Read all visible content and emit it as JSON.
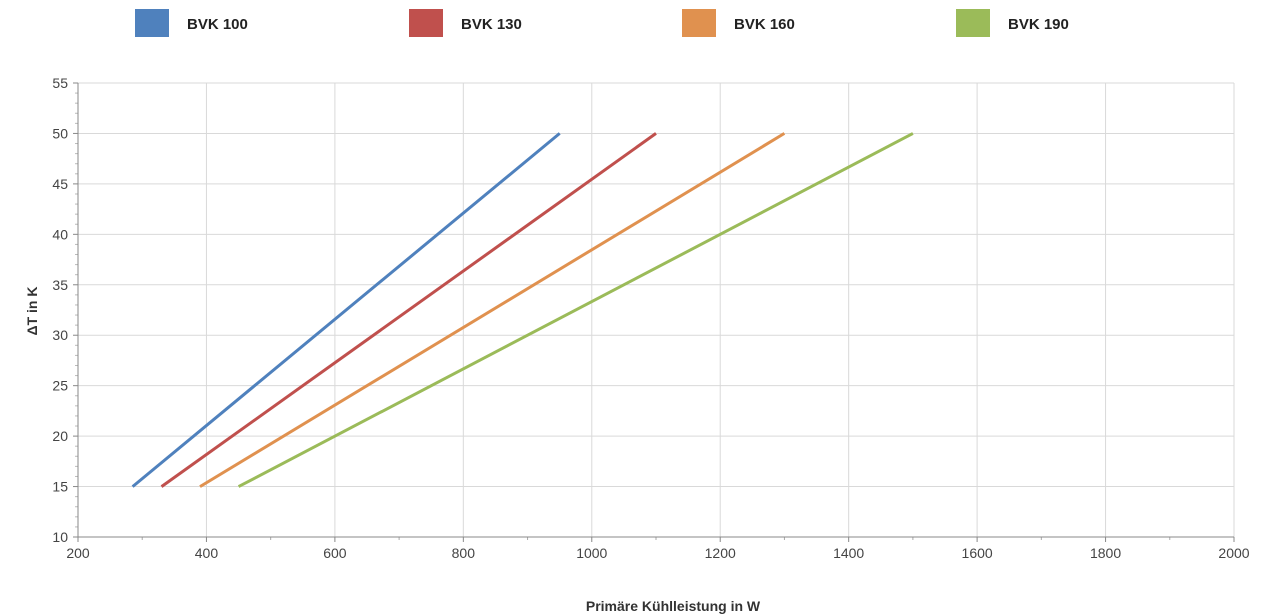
{
  "chart_data": {
    "type": "line",
    "xlabel": "Primäre Kühlleistung in W",
    "ylabel": "ΔT in K",
    "xlim": [
      200,
      2000
    ],
    "ylim": [
      10,
      55
    ],
    "xticks": [
      200,
      400,
      600,
      800,
      1000,
      1200,
      1400,
      1600,
      1800,
      2000
    ],
    "yticks": [
      10,
      15,
      20,
      25,
      30,
      35,
      40,
      45,
      50,
      55
    ],
    "grid": true,
    "legend_position": "top",
    "series": [
      {
        "name": "BVK 100",
        "color": "#4F81BD",
        "x": [
          285,
          950
        ],
        "y": [
          15,
          50
        ]
      },
      {
        "name": "BVK 130",
        "color": "#C0504D",
        "x": [
          330,
          1100
        ],
        "y": [
          15,
          50
        ]
      },
      {
        "name": "BVK 160",
        "color": "#E0914F",
        "x": [
          390,
          1300
        ],
        "y": [
          15,
          50
        ]
      },
      {
        "name": "BVK 190",
        "color": "#9BBB59",
        "x": [
          450,
          1500
        ],
        "y": [
          15,
          50
        ]
      }
    ]
  }
}
